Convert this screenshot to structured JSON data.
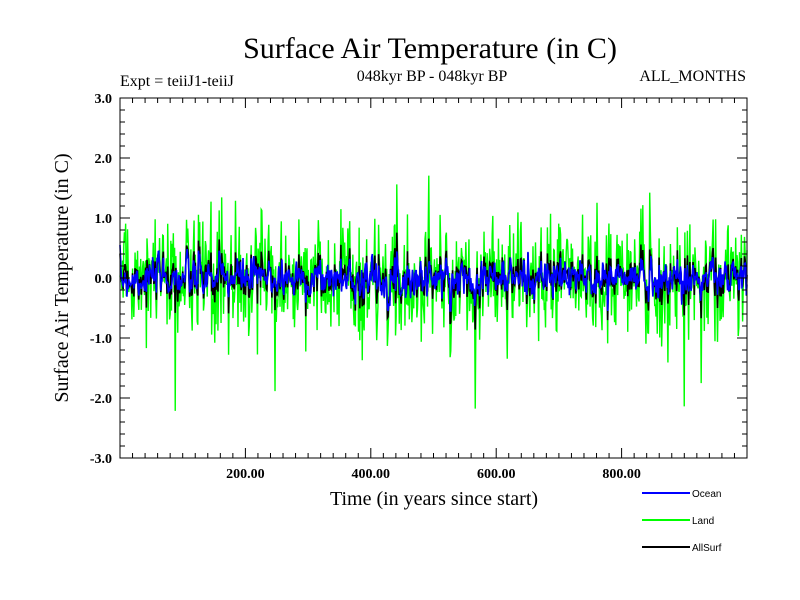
{
  "header": {
    "title": "Surface Air Temperature (in C)",
    "expt": "Expt = teiiJ1-teiiJ",
    "period": "048kyr BP - 048kyr BP",
    "months": "ALL_MONTHS"
  },
  "chart_data": {
    "type": "line",
    "xlabel": "Time (in years since start)",
    "ylabel": "Surface Air Temperature (in C)",
    "xlim": [
      0,
      1000
    ],
    "ylim": [
      -3.0,
      3.0
    ],
    "x_ticks": [
      200,
      400,
      600,
      800
    ],
    "x_tick_labels": [
      "200.00",
      "400.00",
      "600.00",
      "800.00"
    ],
    "y_ticks": [
      3.0,
      2.0,
      1.0,
      0.0,
      -1.0,
      -2.0,
      -3.0
    ],
    "y_tick_labels": [
      "3.0",
      "2.0",
      "1.0",
      "0.0",
      "-1.0",
      "-2.0",
      "-3.0"
    ],
    "grid": false,
    "legend_position": "bottom-right",
    "series": [
      {
        "name": "Land",
        "color": "#00ff00",
        "amplitude_range": [
          -2.4,
          2.0
        ],
        "typical_std": 0.45,
        "n_points": 1000
      },
      {
        "name": "Ocean",
        "color": "#0000ff",
        "amplitude_range": [
          -0.55,
          0.55
        ],
        "typical_std": 0.15,
        "n_points": 1000
      },
      {
        "name": "AllSurf",
        "color": "#000000",
        "amplitude_range": [
          -0.6,
          0.6
        ],
        "typical_std": 0.17,
        "n_points": 1000
      }
    ]
  }
}
